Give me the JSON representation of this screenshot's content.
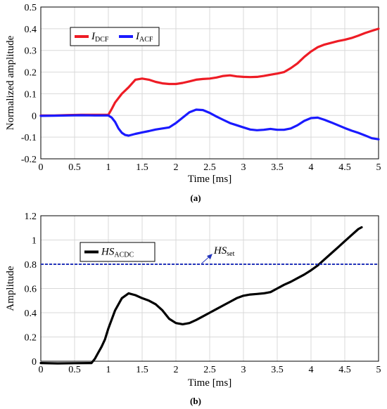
{
  "chart_data": [
    {
      "type": "line",
      "caption": "(a)",
      "xlabel": "Time [ms]",
      "ylabel": "Normalized amplitude",
      "xlim": [
        0,
        5
      ],
      "ylim": [
        -0.2,
        0.5
      ],
      "xticks": [
        0,
        0.5,
        1,
        1.5,
        2,
        2.5,
        3,
        3.5,
        4,
        4.5,
        5
      ],
      "xticklabels": [
        "0",
        "0.5",
        "1",
        "1.5",
        "2",
        "2.5",
        "3",
        "3.5",
        "4",
        "4.5",
        "5"
      ],
      "yticks": [
        -0.2,
        -0.1,
        0,
        0.1,
        0.2,
        0.3,
        0.4,
        0.5
      ],
      "yticklabels": [
        "-0.2",
        "-0.1",
        "0",
        "0.1",
        "0.2",
        "0.3",
        "0.4",
        "0.5"
      ],
      "grid": true,
      "legend": "top-left",
      "series": [
        {
          "name_main": "I",
          "name_sub": "DCF",
          "color": "#ee1c25",
          "x": [
            0,
            0.2,
            0.4,
            0.6,
            0.8,
            1.0,
            1.05,
            1.1,
            1.2,
            1.3,
            1.4,
            1.5,
            1.6,
            1.7,
            1.8,
            1.9,
            2.0,
            2.1,
            2.2,
            2.3,
            2.4,
            2.5,
            2.6,
            2.7,
            2.8,
            2.9,
            3.0,
            3.1,
            3.2,
            3.3,
            3.4,
            3.5,
            3.6,
            3.7,
            3.8,
            3.9,
            4.0,
            4.1,
            4.2,
            4.3,
            4.4,
            4.5,
            4.6,
            4.7,
            4.8,
            4.9,
            5.0
          ],
          "y": [
            0.0,
            0.0,
            0.002,
            0.003,
            0.003,
            0.003,
            0.03,
            0.06,
            0.1,
            0.13,
            0.165,
            0.17,
            0.165,
            0.155,
            0.148,
            0.145,
            0.145,
            0.15,
            0.157,
            0.165,
            0.168,
            0.17,
            0.175,
            0.182,
            0.185,
            0.18,
            0.178,
            0.177,
            0.178,
            0.182,
            0.188,
            0.193,
            0.2,
            0.218,
            0.24,
            0.27,
            0.295,
            0.315,
            0.327,
            0.335,
            0.343,
            0.349,
            0.357,
            0.368,
            0.38,
            0.39,
            0.4
          ]
        },
        {
          "name_main": "I",
          "name_sub": "ACF",
          "color": "#1a1aff",
          "x": [
            0,
            0.2,
            0.4,
            0.6,
            0.8,
            1.0,
            1.05,
            1.1,
            1.15,
            1.2,
            1.25,
            1.3,
            1.4,
            1.5,
            1.6,
            1.7,
            1.8,
            1.9,
            2.0,
            2.1,
            2.2,
            2.3,
            2.4,
            2.5,
            2.6,
            2.7,
            2.8,
            2.9,
            3.0,
            3.1,
            3.2,
            3.3,
            3.4,
            3.5,
            3.6,
            3.7,
            3.8,
            3.9,
            4.0,
            4.1,
            4.2,
            4.3,
            4.4,
            4.5,
            4.6,
            4.7,
            4.8,
            4.9,
            5.0
          ],
          "y": [
            -0.002,
            -0.001,
            0.0,
            0.001,
            0.0,
            0.0,
            -0.01,
            -0.03,
            -0.06,
            -0.08,
            -0.09,
            -0.093,
            -0.085,
            -0.078,
            -0.072,
            -0.065,
            -0.06,
            -0.055,
            -0.035,
            -0.01,
            0.015,
            0.027,
            0.025,
            0.012,
            -0.005,
            -0.02,
            -0.035,
            -0.045,
            -0.055,
            -0.065,
            -0.068,
            -0.066,
            -0.062,
            -0.066,
            -0.066,
            -0.06,
            -0.045,
            -0.025,
            -0.012,
            -0.01,
            -0.02,
            -0.032,
            -0.045,
            -0.058,
            -0.07,
            -0.08,
            -0.092,
            -0.105,
            -0.11
          ]
        }
      ]
    },
    {
      "type": "line",
      "caption": "(b)",
      "xlabel": "Time [ms]",
      "ylabel": "Amplitude",
      "xlim": [
        0,
        5
      ],
      "ylim": [
        0,
        1.2
      ],
      "xticks": [
        0,
        0.5,
        1,
        1.5,
        2,
        2.5,
        3,
        3.5,
        4,
        4.5,
        5
      ],
      "xticklabels": [
        "0",
        "0.5",
        "1",
        "1.5",
        "2",
        "2.5",
        "3",
        "3.5",
        "4",
        "4.5",
        "5"
      ],
      "yticks": [
        0,
        0.2,
        0.4,
        0.6,
        0.8,
        1.0,
        1.2
      ],
      "yticklabels": [
        "0",
        "0.2",
        "0.4",
        "0.6",
        "0.8",
        "1",
        "1.2"
      ],
      "grid": true,
      "legend": "top-left",
      "series": [
        {
          "name_main": "HS",
          "name_sub": "ACDC",
          "color": "#000000",
          "x": [
            0,
            0.25,
            0.5,
            0.75,
            0.8,
            0.85,
            0.9,
            0.95,
            1.0,
            1.1,
            1.2,
            1.3,
            1.4,
            1.5,
            1.6,
            1.7,
            1.8,
            1.9,
            2.0,
            2.1,
            2.2,
            2.3,
            2.4,
            2.5,
            2.6,
            2.7,
            2.8,
            2.9,
            3.0,
            3.1,
            3.2,
            3.3,
            3.4,
            3.5,
            3.6,
            3.7,
            3.8,
            3.9,
            4.0,
            4.1,
            4.2,
            4.3,
            4.4,
            4.5,
            4.6,
            4.7,
            4.75
          ],
          "y": [
            -0.015,
            -0.018,
            -0.016,
            -0.015,
            0.02,
            0.07,
            0.12,
            0.18,
            0.27,
            0.42,
            0.52,
            0.56,
            0.545,
            0.52,
            0.5,
            0.47,
            0.42,
            0.35,
            0.315,
            0.305,
            0.315,
            0.34,
            0.37,
            0.4,
            0.43,
            0.46,
            0.49,
            0.52,
            0.54,
            0.55,
            0.555,
            0.56,
            0.57,
            0.6,
            0.63,
            0.655,
            0.685,
            0.715,
            0.75,
            0.79,
            0.84,
            0.89,
            0.94,
            0.99,
            1.04,
            1.09,
            1.105
          ]
        },
        {
          "name_main": "HS",
          "name_sub": "set",
          "color": "#2233bb",
          "dashed": true,
          "x": [
            0,
            5
          ],
          "y": [
            0.8,
            0.8
          ]
        }
      ]
    }
  ]
}
